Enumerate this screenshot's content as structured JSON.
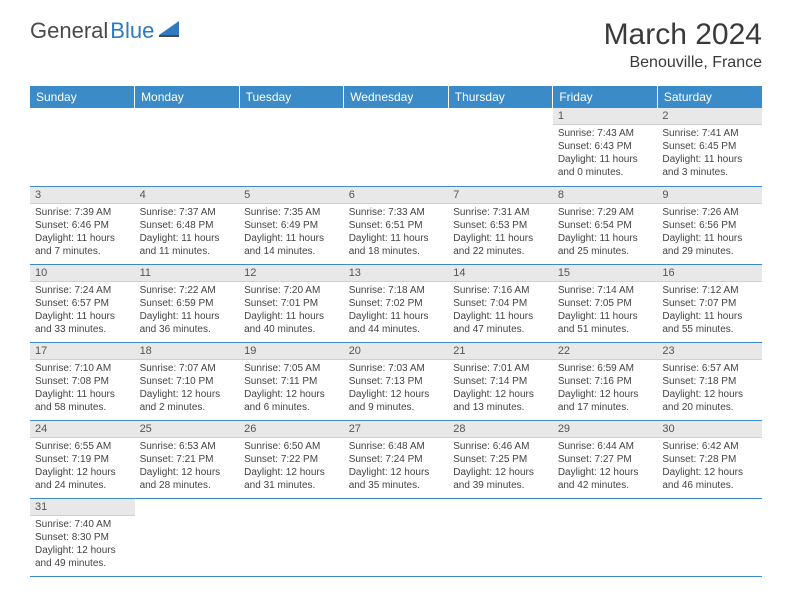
{
  "logo": {
    "text1": "General",
    "text2": "Blue"
  },
  "title": "March 2024",
  "location": "Benouville, France",
  "colors": {
    "header_bg": "#3b8bc9",
    "header_fg": "#ffffff",
    "daynum_bg": "#e8e8e8",
    "row_border": "#3b8bc9",
    "logo_gray": "#4a4a4a",
    "logo_blue": "#2d7ac0"
  },
  "weekdays": [
    "Sunday",
    "Monday",
    "Tuesday",
    "Wednesday",
    "Thursday",
    "Friday",
    "Saturday"
  ],
  "weeks": [
    [
      null,
      null,
      null,
      null,
      null,
      {
        "n": "1",
        "sr": "Sunrise: 7:43 AM",
        "ss": "Sunset: 6:43 PM",
        "dl1": "Daylight: 11 hours",
        "dl2": "and 0 minutes."
      },
      {
        "n": "2",
        "sr": "Sunrise: 7:41 AM",
        "ss": "Sunset: 6:45 PM",
        "dl1": "Daylight: 11 hours",
        "dl2": "and 3 minutes."
      }
    ],
    [
      {
        "n": "3",
        "sr": "Sunrise: 7:39 AM",
        "ss": "Sunset: 6:46 PM",
        "dl1": "Daylight: 11 hours",
        "dl2": "and 7 minutes."
      },
      {
        "n": "4",
        "sr": "Sunrise: 7:37 AM",
        "ss": "Sunset: 6:48 PM",
        "dl1": "Daylight: 11 hours",
        "dl2": "and 11 minutes."
      },
      {
        "n": "5",
        "sr": "Sunrise: 7:35 AM",
        "ss": "Sunset: 6:49 PM",
        "dl1": "Daylight: 11 hours",
        "dl2": "and 14 minutes."
      },
      {
        "n": "6",
        "sr": "Sunrise: 7:33 AM",
        "ss": "Sunset: 6:51 PM",
        "dl1": "Daylight: 11 hours",
        "dl2": "and 18 minutes."
      },
      {
        "n": "7",
        "sr": "Sunrise: 7:31 AM",
        "ss": "Sunset: 6:53 PM",
        "dl1": "Daylight: 11 hours",
        "dl2": "and 22 minutes."
      },
      {
        "n": "8",
        "sr": "Sunrise: 7:29 AM",
        "ss": "Sunset: 6:54 PM",
        "dl1": "Daylight: 11 hours",
        "dl2": "and 25 minutes."
      },
      {
        "n": "9",
        "sr": "Sunrise: 7:26 AM",
        "ss": "Sunset: 6:56 PM",
        "dl1": "Daylight: 11 hours",
        "dl2": "and 29 minutes."
      }
    ],
    [
      {
        "n": "10",
        "sr": "Sunrise: 7:24 AM",
        "ss": "Sunset: 6:57 PM",
        "dl1": "Daylight: 11 hours",
        "dl2": "and 33 minutes."
      },
      {
        "n": "11",
        "sr": "Sunrise: 7:22 AM",
        "ss": "Sunset: 6:59 PM",
        "dl1": "Daylight: 11 hours",
        "dl2": "and 36 minutes."
      },
      {
        "n": "12",
        "sr": "Sunrise: 7:20 AM",
        "ss": "Sunset: 7:01 PM",
        "dl1": "Daylight: 11 hours",
        "dl2": "and 40 minutes."
      },
      {
        "n": "13",
        "sr": "Sunrise: 7:18 AM",
        "ss": "Sunset: 7:02 PM",
        "dl1": "Daylight: 11 hours",
        "dl2": "and 44 minutes."
      },
      {
        "n": "14",
        "sr": "Sunrise: 7:16 AM",
        "ss": "Sunset: 7:04 PM",
        "dl1": "Daylight: 11 hours",
        "dl2": "and 47 minutes."
      },
      {
        "n": "15",
        "sr": "Sunrise: 7:14 AM",
        "ss": "Sunset: 7:05 PM",
        "dl1": "Daylight: 11 hours",
        "dl2": "and 51 minutes."
      },
      {
        "n": "16",
        "sr": "Sunrise: 7:12 AM",
        "ss": "Sunset: 7:07 PM",
        "dl1": "Daylight: 11 hours",
        "dl2": "and 55 minutes."
      }
    ],
    [
      {
        "n": "17",
        "sr": "Sunrise: 7:10 AM",
        "ss": "Sunset: 7:08 PM",
        "dl1": "Daylight: 11 hours",
        "dl2": "and 58 minutes."
      },
      {
        "n": "18",
        "sr": "Sunrise: 7:07 AM",
        "ss": "Sunset: 7:10 PM",
        "dl1": "Daylight: 12 hours",
        "dl2": "and 2 minutes."
      },
      {
        "n": "19",
        "sr": "Sunrise: 7:05 AM",
        "ss": "Sunset: 7:11 PM",
        "dl1": "Daylight: 12 hours",
        "dl2": "and 6 minutes."
      },
      {
        "n": "20",
        "sr": "Sunrise: 7:03 AM",
        "ss": "Sunset: 7:13 PM",
        "dl1": "Daylight: 12 hours",
        "dl2": "and 9 minutes."
      },
      {
        "n": "21",
        "sr": "Sunrise: 7:01 AM",
        "ss": "Sunset: 7:14 PM",
        "dl1": "Daylight: 12 hours",
        "dl2": "and 13 minutes."
      },
      {
        "n": "22",
        "sr": "Sunrise: 6:59 AM",
        "ss": "Sunset: 7:16 PM",
        "dl1": "Daylight: 12 hours",
        "dl2": "and 17 minutes."
      },
      {
        "n": "23",
        "sr": "Sunrise: 6:57 AM",
        "ss": "Sunset: 7:18 PM",
        "dl1": "Daylight: 12 hours",
        "dl2": "and 20 minutes."
      }
    ],
    [
      {
        "n": "24",
        "sr": "Sunrise: 6:55 AM",
        "ss": "Sunset: 7:19 PM",
        "dl1": "Daylight: 12 hours",
        "dl2": "and 24 minutes."
      },
      {
        "n": "25",
        "sr": "Sunrise: 6:53 AM",
        "ss": "Sunset: 7:21 PM",
        "dl1": "Daylight: 12 hours",
        "dl2": "and 28 minutes."
      },
      {
        "n": "26",
        "sr": "Sunrise: 6:50 AM",
        "ss": "Sunset: 7:22 PM",
        "dl1": "Daylight: 12 hours",
        "dl2": "and 31 minutes."
      },
      {
        "n": "27",
        "sr": "Sunrise: 6:48 AM",
        "ss": "Sunset: 7:24 PM",
        "dl1": "Daylight: 12 hours",
        "dl2": "and 35 minutes."
      },
      {
        "n": "28",
        "sr": "Sunrise: 6:46 AM",
        "ss": "Sunset: 7:25 PM",
        "dl1": "Daylight: 12 hours",
        "dl2": "and 39 minutes."
      },
      {
        "n": "29",
        "sr": "Sunrise: 6:44 AM",
        "ss": "Sunset: 7:27 PM",
        "dl1": "Daylight: 12 hours",
        "dl2": "and 42 minutes."
      },
      {
        "n": "30",
        "sr": "Sunrise: 6:42 AM",
        "ss": "Sunset: 7:28 PM",
        "dl1": "Daylight: 12 hours",
        "dl2": "and 46 minutes."
      }
    ],
    [
      {
        "n": "31",
        "sr": "Sunrise: 7:40 AM",
        "ss": "Sunset: 8:30 PM",
        "dl1": "Daylight: 12 hours",
        "dl2": "and 49 minutes."
      },
      null,
      null,
      null,
      null,
      null,
      null
    ]
  ]
}
